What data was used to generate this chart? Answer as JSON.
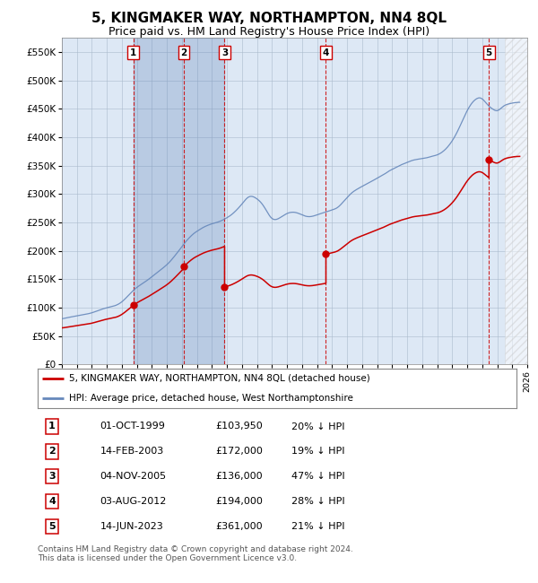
{
  "title": "5, KINGMAKER WAY, NORTHAMPTON, NN4 8QL",
  "subtitle": "Price paid vs. HM Land Registry's House Price Index (HPI)",
  "title_fontsize": 11,
  "subtitle_fontsize": 9,
  "xmin": 1995,
  "xmax": 2026,
  "ymin": 0,
  "ymax": 575000,
  "yticks": [
    0,
    50000,
    100000,
    150000,
    200000,
    250000,
    300000,
    350000,
    400000,
    450000,
    500000,
    550000
  ],
  "ytick_labels": [
    "£0",
    "£50K",
    "£100K",
    "£150K",
    "£200K",
    "£250K",
    "£300K",
    "£350K",
    "£400K",
    "£450K",
    "£500K",
    "£550K"
  ],
  "sale_dates_year": [
    1999.75,
    2003.12,
    2005.84,
    2012.59,
    2023.45
  ],
  "sale_prices": [
    103950,
    172000,
    136000,
    194000,
    361000
  ],
  "sale_labels": [
    "1",
    "2",
    "3",
    "4",
    "5"
  ],
  "legend_sale": "5, KINGMAKER WAY, NORTHAMPTON, NN4 8QL (detached house)",
  "legend_hpi": "HPI: Average price, detached house, West Northamptonshire",
  "table_rows": [
    [
      "1",
      "01-OCT-1999",
      "£103,950",
      "20% ↓ HPI"
    ],
    [
      "2",
      "14-FEB-2003",
      "£172,000",
      "19% ↓ HPI"
    ],
    [
      "3",
      "04-NOV-2005",
      "£136,000",
      "47% ↓ HPI"
    ],
    [
      "4",
      "03-AUG-2012",
      "£194,000",
      "28% ↓ HPI"
    ],
    [
      "5",
      "14-JUN-2023",
      "£361,000",
      "21% ↓ HPI"
    ]
  ],
  "footnote": "Contains HM Land Registry data © Crown copyright and database right 2024.\nThis data is licensed under the Open Government Licence v3.0.",
  "hpi_color": "#6688bb",
  "sale_color": "#cc0000",
  "bg_color": "#ffffff",
  "plot_bg_color": "#dde8f5",
  "grid_color": "#aabbcc",
  "hatch_color": "#cccccc"
}
